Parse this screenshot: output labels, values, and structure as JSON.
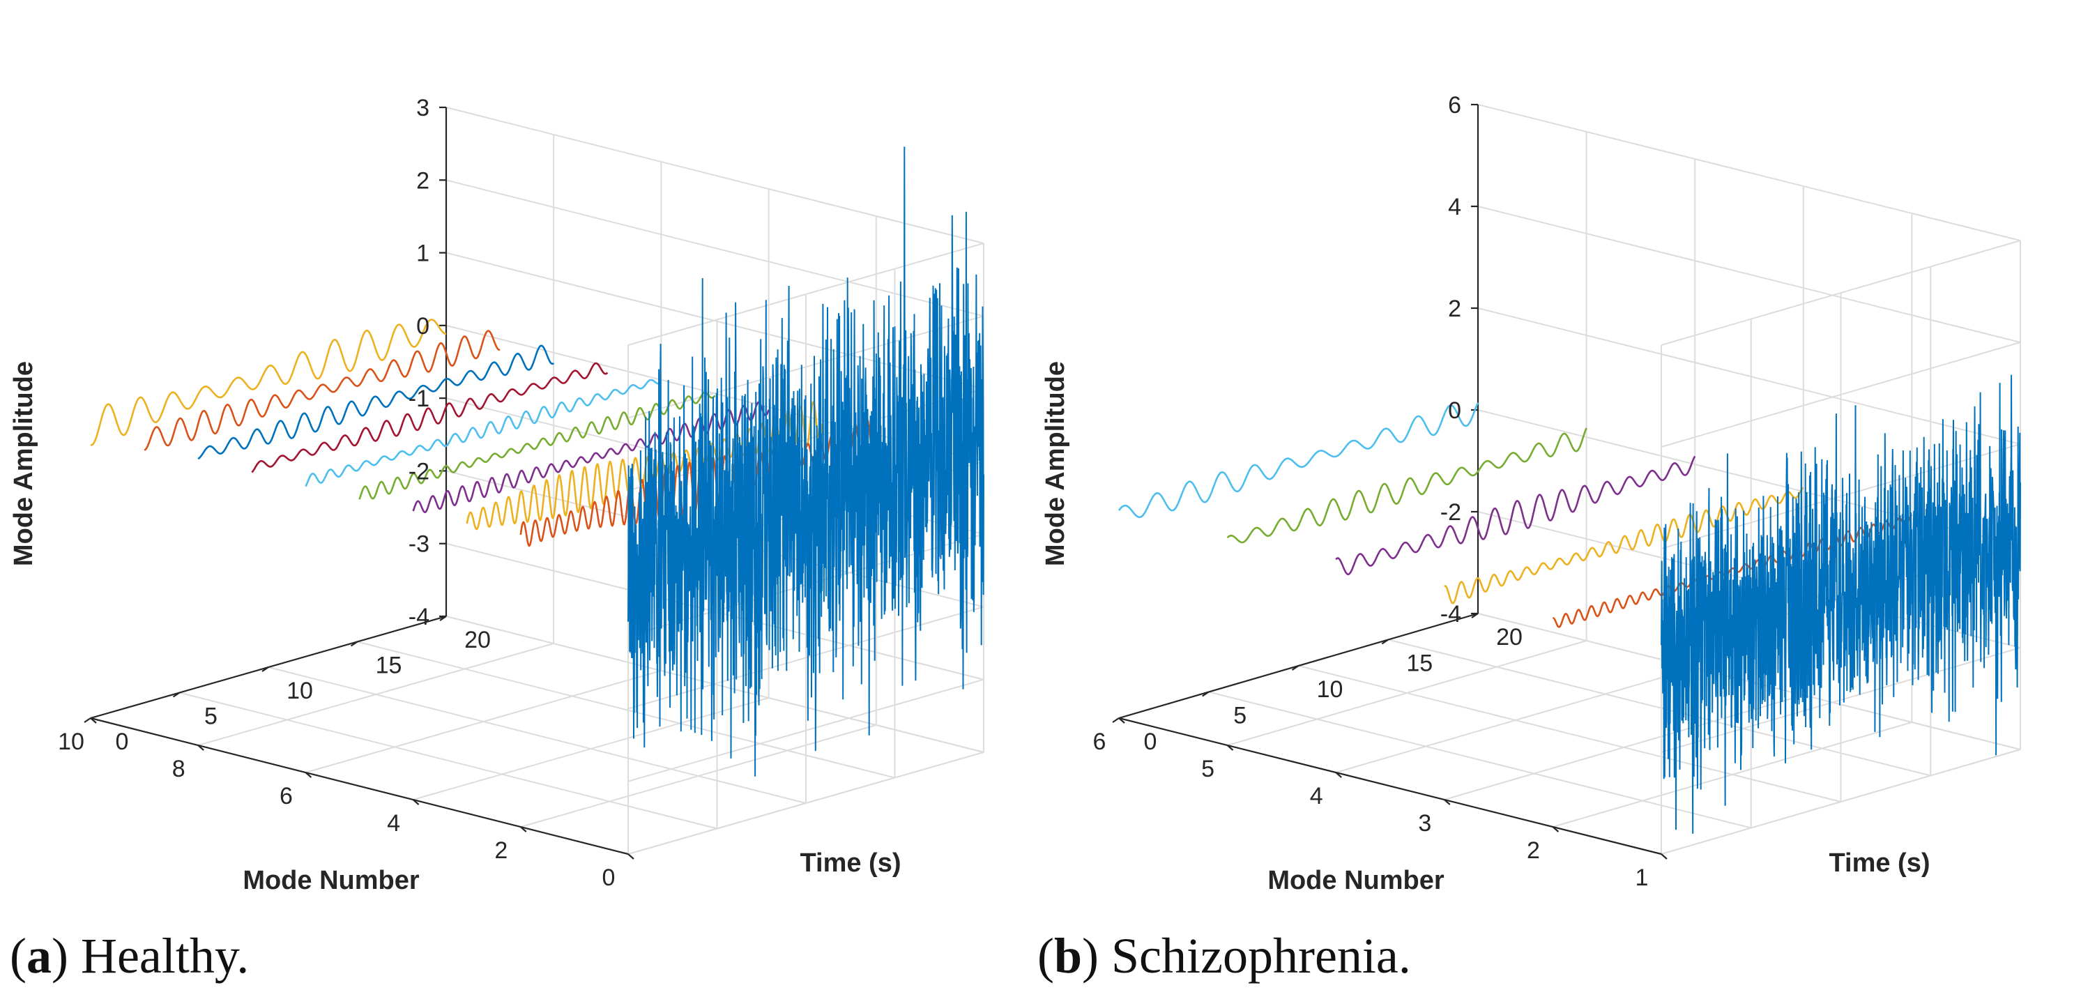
{
  "chart_data": [
    {
      "type": "line",
      "panel_label": "a",
      "caption": "Healthy.",
      "xlabel": "Time (s)",
      "ylabel": "Mode Number",
      "zlabel": "Mode Amplitude",
      "xlim": [
        0,
        20
      ],
      "ylim": [
        0,
        10
      ],
      "zlim": [
        -4,
        3
      ],
      "x_ticks": [
        "0",
        "5",
        "10",
        "15",
        "20"
      ],
      "y_ticks": [
        "0",
        "2",
        "4",
        "6",
        "8",
        "10"
      ],
      "z_ticks": [
        "-4",
        "-3",
        "-2",
        "-1",
        "0",
        "1",
        "2",
        "3"
      ],
      "grid": true,
      "series": [
        {
          "mode_number": 10,
          "color": "#EDB120",
          "amplitude": 0.25,
          "cycles": 11
        },
        {
          "mode_number": 9,
          "color": "#D95319",
          "amplitude": 0.18,
          "cycles": 15
        },
        {
          "mode_number": 8,
          "color": "#0072BD",
          "amplitude": 0.15,
          "cycles": 15
        },
        {
          "mode_number": 7,
          "color": "#A2142F",
          "amplitude": 0.13,
          "cycles": 17
        },
        {
          "mode_number": 6,
          "color": "#4DBEEE",
          "amplitude": 0.1,
          "cycles": 20
        },
        {
          "mode_number": 5,
          "color": "#77AC30",
          "amplitude": 0.1,
          "cycles": 22
        },
        {
          "mode_number": 4,
          "color": "#7E2F8E",
          "amplitude": 0.12,
          "cycles": 24
        },
        {
          "mode_number": 3,
          "color": "#EDB120",
          "amplitude": 0.3,
          "cycles": 28
        },
        {
          "mode_number": 2,
          "color": "#D95319",
          "amplitude": 0.35,
          "cycles": 30
        },
        {
          "mode_number": 0,
          "color": "#0072BD",
          "amplitude": 1.2,
          "noise": true
        }
      ]
    },
    {
      "type": "line",
      "panel_label": "b",
      "caption": "Schizophrenia.",
      "xlabel": "Time (s)",
      "ylabel": "Mode Number",
      "zlabel": "Mode Amplitude",
      "xlim": [
        0,
        20
      ],
      "ylim": [
        1,
        6
      ],
      "zlim": [
        -4,
        6
      ],
      "x_ticks": [
        "0",
        "5",
        "10",
        "15",
        "20"
      ],
      "y_ticks": [
        "1",
        "2",
        "3",
        "4",
        "5",
        "6"
      ],
      "z_ticks": [
        "-4",
        "-2",
        "0",
        "2",
        "4",
        "6"
      ],
      "grid": true,
      "series": [
        {
          "mode_number": 6,
          "color": "#4DBEEE",
          "amplitude": 0.25,
          "cycles": 11
        },
        {
          "mode_number": 5,
          "color": "#77AC30",
          "amplitude": 0.25,
          "cycles": 14
        },
        {
          "mode_number": 4,
          "color": "#7E2F8E",
          "amplitude": 0.3,
          "cycles": 16
        },
        {
          "mode_number": 3,
          "color": "#EDB120",
          "amplitude": 0.2,
          "cycles": 22
        },
        {
          "mode_number": 2,
          "color": "#D95319",
          "amplitude": 0.12,
          "cycles": 28
        },
        {
          "mode_number": 1,
          "color": "#0072BD",
          "amplitude": 1.3,
          "noise": true
        }
      ]
    }
  ]
}
